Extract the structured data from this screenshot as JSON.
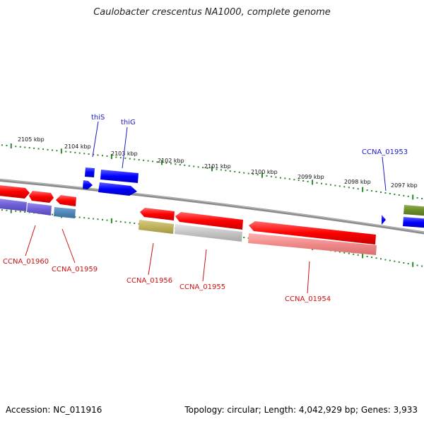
{
  "title": "Caulobacter crescentus NA1000, complete genome",
  "footer": {
    "accession": "Accession: NC_011916",
    "summary": "Topology: circular; Length: 4,042,929 bp; Genes: 3,933"
  },
  "colors": {
    "backbone": "#8c8c8c",
    "ticks": "#2a8a2a",
    "forward_label": "#1a1acc",
    "reverse_label": "#cc1111"
  },
  "ruler_labels": [
    "2105 kbp",
    "2104 kbp",
    "2103 kbp",
    "2102 kbp",
    "2101 kbp",
    "2100 kbp",
    "2099 kbp",
    "2098 kbp",
    "2097 kbp"
  ],
  "gene_labels": {
    "thiS": "thiS",
    "thiG": "thiG",
    "ccna_01953": "CCNA_01953",
    "ccna_01960": "CCNA_01960",
    "ccna_01959": "CCNA_01959",
    "ccna_01956": "CCNA_01956",
    "ccna_01955": "CCNA_01955",
    "ccna_01954": "CCNA_01954"
  }
}
